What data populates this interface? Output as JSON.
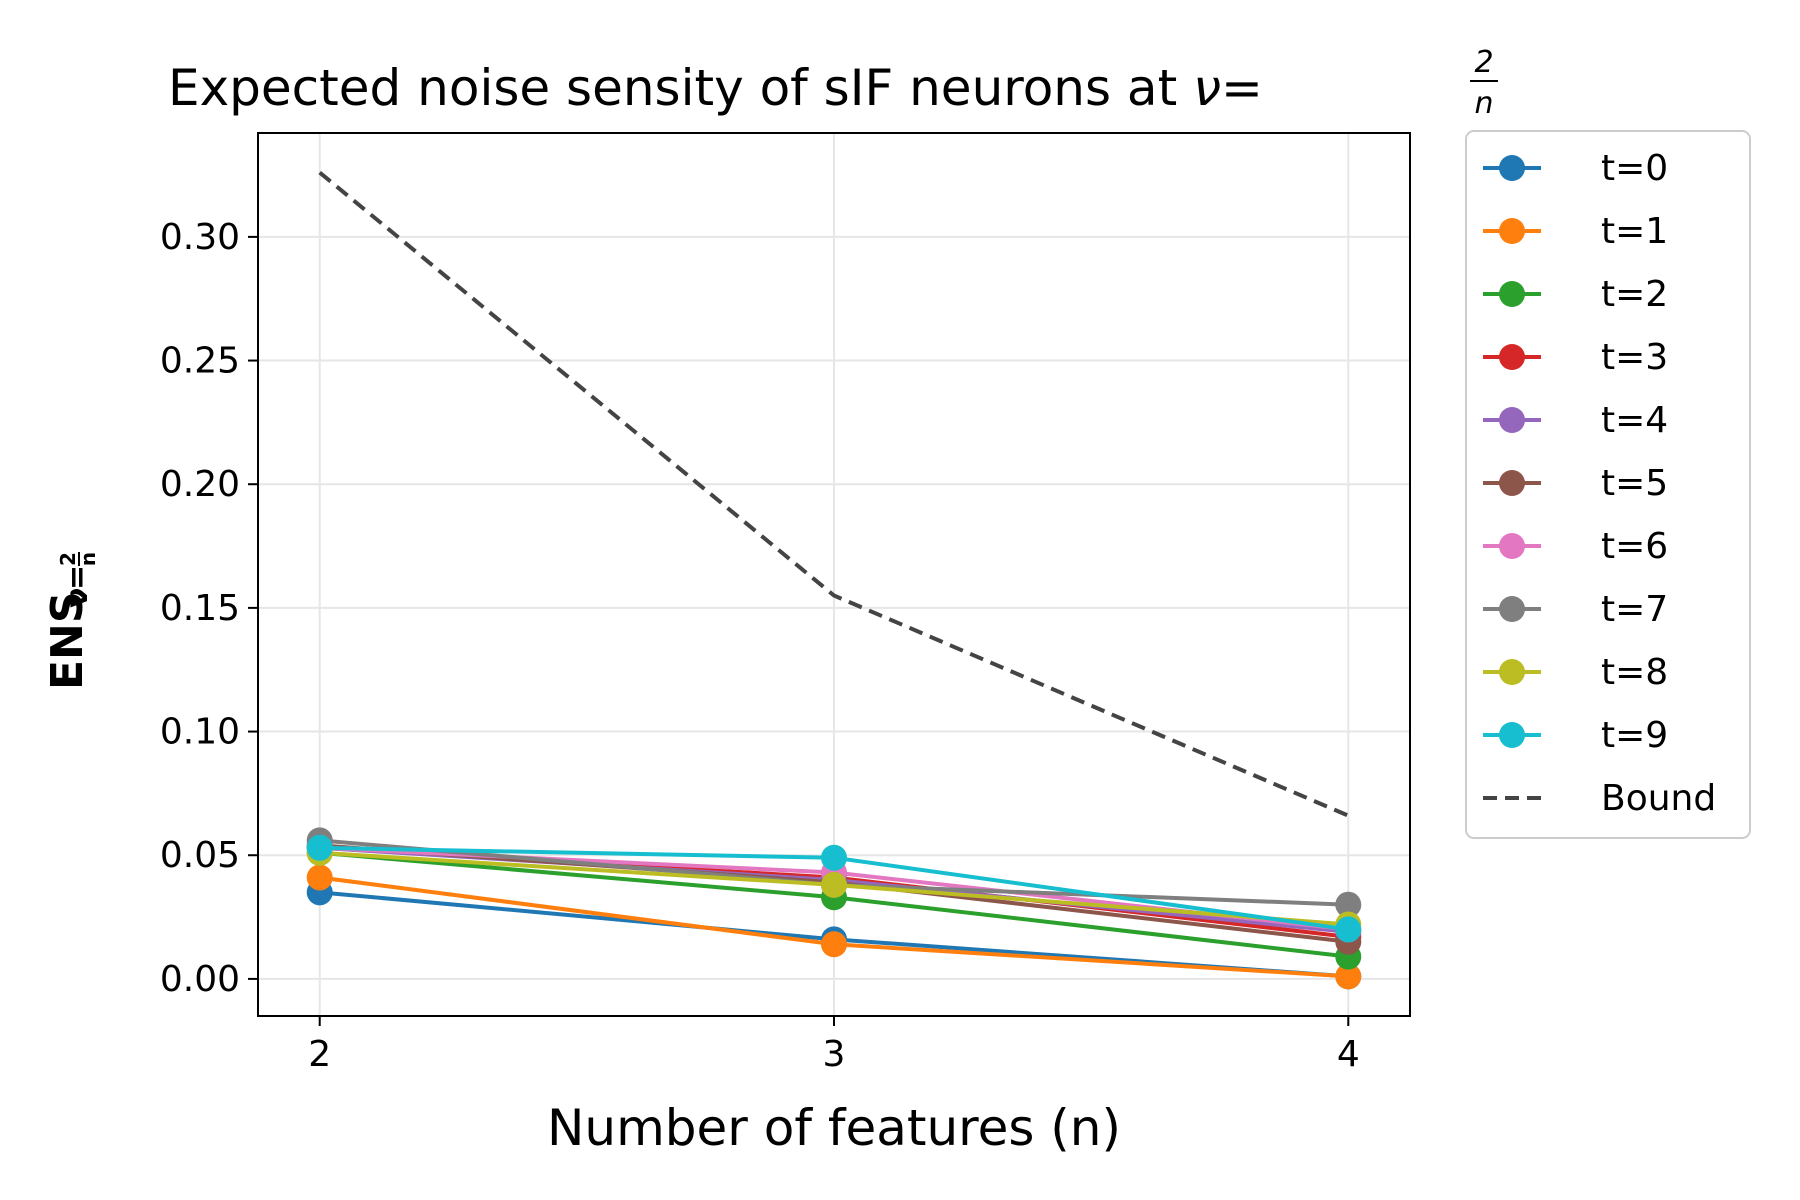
{
  "chart_data": {
    "type": "line",
    "title": "Expected noise sensity of sIF neurons at",
    "title_math": {
      "symbol": "ν",
      "eq": "=",
      "num": "2",
      "den": "n"
    },
    "xlabel": "Number of features (n)",
    "ylabel": "ENS",
    "ylabel_math": {
      "symbol": "ν",
      "eq": "=",
      "num": "2",
      "den": "n"
    },
    "x": [
      2,
      3,
      4
    ],
    "x_ticks": [
      "2",
      "3",
      "4"
    ],
    "xlim": [
      1.88,
      4.12
    ],
    "ylim": [
      -0.015,
      0.342
    ],
    "y_ticks": [
      {
        "value": 0.0,
        "label": "0.00"
      },
      {
        "value": 0.05,
        "label": "0.05"
      },
      {
        "value": 0.1,
        "label": "0.10"
      },
      {
        "value": 0.15,
        "label": "0.15"
      },
      {
        "value": 0.2,
        "label": "0.20"
      },
      {
        "value": 0.25,
        "label": "0.25"
      },
      {
        "value": 0.3,
        "label": "0.30"
      }
    ],
    "grid": true,
    "legend_position": "outside-right",
    "series": [
      {
        "name": "t=0",
        "color": "#1f77b4",
        "marker": "circle",
        "values": [
          0.035,
          0.016,
          0.001
        ]
      },
      {
        "name": "t=1",
        "color": "#ff7f0e",
        "marker": "circle",
        "values": [
          0.041,
          0.014,
          0.001
        ]
      },
      {
        "name": "t=2",
        "color": "#2ca02c",
        "marker": "circle",
        "values": [
          0.051,
          0.033,
          0.009
        ]
      },
      {
        "name": "t=3",
        "color": "#d62728",
        "marker": "circle",
        "values": [
          0.053,
          0.041,
          0.017
        ]
      },
      {
        "name": "t=4",
        "color": "#9467bd",
        "marker": "circle",
        "values": [
          0.053,
          0.04,
          0.019
        ]
      },
      {
        "name": "t=5",
        "color": "#8c564b",
        "marker": "circle",
        "values": [
          0.054,
          0.039,
          0.015
        ]
      },
      {
        "name": "t=6",
        "color": "#e377c2",
        "marker": "circle",
        "values": [
          0.053,
          0.043,
          0.02
        ]
      },
      {
        "name": "t=7",
        "color": "#7f7f7f",
        "marker": "circle",
        "values": [
          0.056,
          0.038,
          0.03
        ]
      },
      {
        "name": "t=8",
        "color": "#bcbd22",
        "marker": "circle",
        "values": [
          0.051,
          0.038,
          0.022
        ]
      },
      {
        "name": "t=9",
        "color": "#17becf",
        "marker": "circle",
        "values": [
          0.053,
          0.049,
          0.02
        ]
      }
    ],
    "bound": {
      "name": "Bound",
      "color": "#444444",
      "dashed": true,
      "values": [
        0.326,
        0.155,
        0.066
      ]
    }
  }
}
